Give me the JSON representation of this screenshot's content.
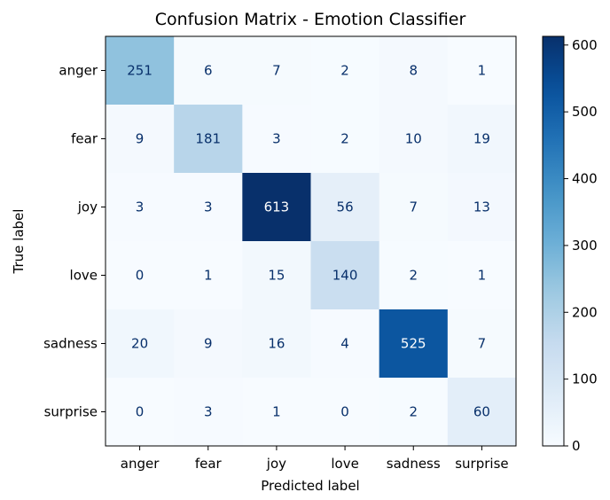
{
  "chart_data": {
    "type": "heatmap",
    "title": "Confusion Matrix - Emotion Classifier",
    "xlabel": "Predicted label",
    "ylabel": "True label",
    "x_categories": [
      "anger",
      "fear",
      "joy",
      "love",
      "sadness",
      "surprise"
    ],
    "y_categories": [
      "anger",
      "fear",
      "joy",
      "love",
      "sadness",
      "surprise"
    ],
    "values": [
      [
        251,
        6,
        7,
        2,
        8,
        1
      ],
      [
        9,
        181,
        3,
        2,
        10,
        19
      ],
      [
        3,
        3,
        613,
        56,
        7,
        13
      ],
      [
        0,
        1,
        15,
        140,
        2,
        1
      ],
      [
        20,
        9,
        16,
        4,
        525,
        7
      ],
      [
        0,
        3,
        1,
        0,
        2,
        60
      ]
    ],
    "colormap": "Blues",
    "color_range": [
      0,
      613
    ],
    "colorbar_ticks": [
      0,
      100,
      200,
      300,
      400,
      500,
      600
    ],
    "grid": false
  }
}
